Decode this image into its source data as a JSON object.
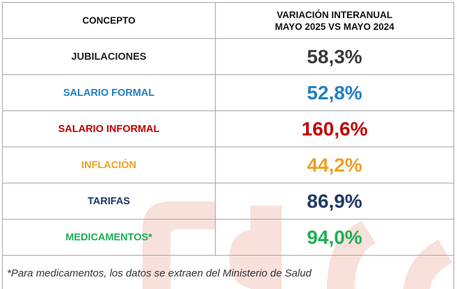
{
  "table": {
    "header": {
      "concept": "CONCEPTO",
      "variation_line1": "VARIACIÓN INTERANUAL",
      "variation_line2": "MAYO 2025 VS MAYO 2024"
    },
    "rows": [
      {
        "label": "JUBILACIONES",
        "value": "58,3%",
        "color": "#3a3a3a",
        "label_color": "#222222"
      },
      {
        "label": "SALARIO FORMAL",
        "value": "52,8%",
        "color": "#1f7fc4",
        "label_color": "#1f7fc4"
      },
      {
        "label": "SALARIO INFORMAL",
        "value": "160,6%",
        "color": "#c00000",
        "label_color": "#c00000"
      },
      {
        "label": "INFLACIÓN",
        "value": "44,2%",
        "color": "#f0a020",
        "label_color": "#f0a020"
      },
      {
        "label": "TARIFAS",
        "value": "86,9%",
        "color": "#1f3864",
        "label_color": "#1f3864"
      },
      {
        "label": "MEDICAMENTOS*",
        "value": "94,0%",
        "color": "#1faf54",
        "label_color": "#1faf54"
      }
    ],
    "footnote": "*Para medicamentos, los datos se extraen del Ministerio de Salud"
  },
  "watermark_color": "#f6d6cf"
}
